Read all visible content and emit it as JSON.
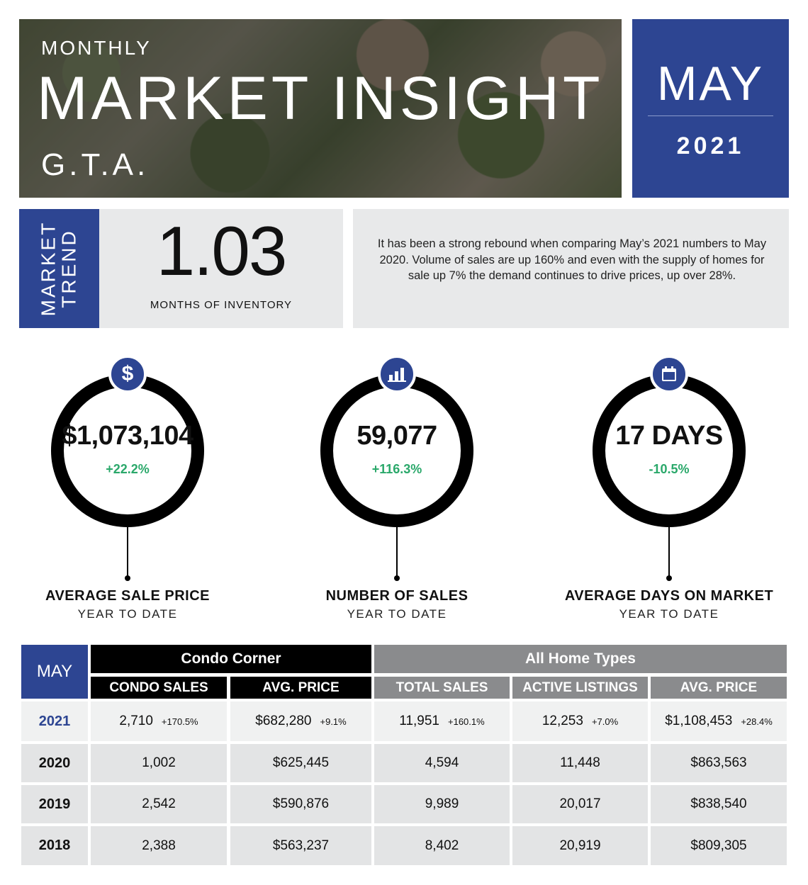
{
  "header": {
    "kicker": "MONTHLY",
    "title": "MARKET INSIGHT",
    "region": "G.T.A.",
    "month": "MAY",
    "year": "2021"
  },
  "trend": {
    "label_line1": "MARKET",
    "label_line2": "TREND",
    "value": "1.03",
    "caption": "MONTHS OF INVENTORY"
  },
  "summary": "It has been a strong rebound when comparing May’s 2021 numbers to May 2020.  Volume of sales are up 160% and even with the supply of homes for sale up 7% the demand continues to drive prices, up over 28%.",
  "kpis": [
    {
      "icon": "dollar-icon",
      "value": "$1,073,104",
      "change": "+22.2%",
      "title": "AVERAGE SALE PRICE",
      "subtitle": "YEAR TO DATE"
    },
    {
      "icon": "bar-chart-icon",
      "value": "59,077",
      "change": "+116.3%",
      "title": "NUMBER OF SALES",
      "subtitle": "YEAR TO DATE"
    },
    {
      "icon": "calendar-icon",
      "value": "17 DAYS",
      "change": "-10.5%",
      "title": "AVERAGE DAYS ON MARKET",
      "subtitle": "YEAR TO DATE"
    }
  ],
  "table": {
    "corner": "MAY",
    "group_condo": "Condo Corner",
    "group_all": "All Home Types",
    "columns": [
      "CONDO SALES",
      "AVG. PRICE",
      "TOTAL SALES",
      "ACTIVE LISTINGS",
      "AVG. PRICE"
    ],
    "rows": [
      {
        "year": "2021",
        "cells": [
          {
            "v": "2,710",
            "c": "+170.5%"
          },
          {
            "v": "$682,280",
            "c": "+9.1%"
          },
          {
            "v": "11,951",
            "c": "+160.1%"
          },
          {
            "v": "12,253",
            "c": "+7.0%"
          },
          {
            "v": "$1,108,453",
            "c": "+28.4%"
          }
        ]
      },
      {
        "year": "2020",
        "cells": [
          {
            "v": "1,002"
          },
          {
            "v": "$625,445"
          },
          {
            "v": "4,594"
          },
          {
            "v": "11,448"
          },
          {
            "v": "$863,563"
          }
        ]
      },
      {
        "year": "2019",
        "cells": [
          {
            "v": "2,542"
          },
          {
            "v": "$590,876"
          },
          {
            "v": "9,989"
          },
          {
            "v": "20,017"
          },
          {
            "v": "$838,540"
          }
        ]
      },
      {
        "year": "2018",
        "cells": [
          {
            "v": "2,388"
          },
          {
            "v": "$563,237"
          },
          {
            "v": "8,402"
          },
          {
            "v": "20,919"
          },
          {
            "v": "$809,305"
          }
        ]
      }
    ]
  },
  "colors": {
    "brand_blue": "#2d4592",
    "positive_green": "#2aa86a",
    "header_gray": "#8a8b8d"
  }
}
